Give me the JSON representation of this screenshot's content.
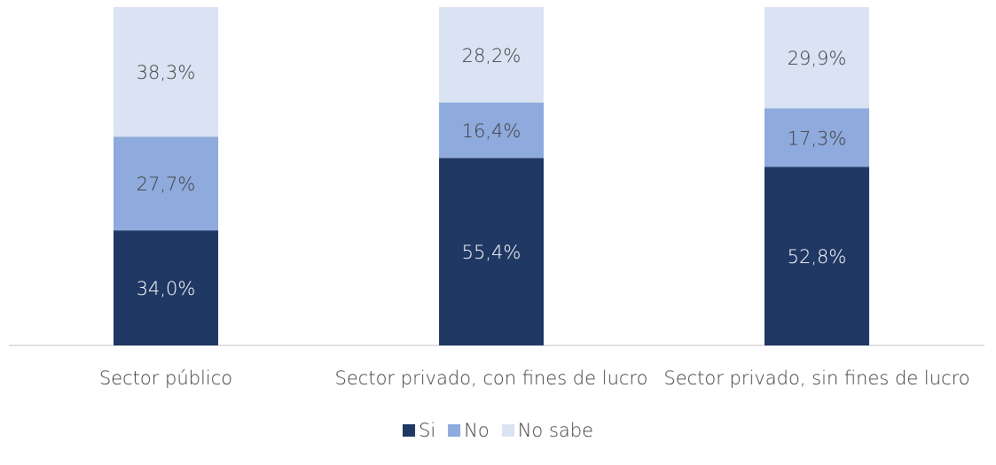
{
  "chart_data": {
    "type": "stacked_bar",
    "categories": [
      "Sector público",
      "Sector privado, con fines de lucro",
      "Sector privado, sin fines de lucro"
    ],
    "series": [
      {
        "name": "Si",
        "color": "#203864",
        "label_color": "#ffffff",
        "values": [
          34.0,
          55.4,
          52.8
        ],
        "value_labels": [
          "34,0%",
          "55,4%",
          "52,8%"
        ]
      },
      {
        "name": "No",
        "color": "#8faadc",
        "label_color": "#404040",
        "values": [
          27.7,
          16.4,
          17.3
        ],
        "value_labels": [
          "27,7%",
          "16,4%",
          "17,3%"
        ]
      },
      {
        "name": "No sabe",
        "color": "#dae3f3",
        "label_color": "#404040",
        "values": [
          38.3,
          28.2,
          29.9
        ],
        "value_labels": [
          "38,3%",
          "28,2%",
          "29,9%"
        ]
      }
    ],
    "legend": "bottom"
  }
}
